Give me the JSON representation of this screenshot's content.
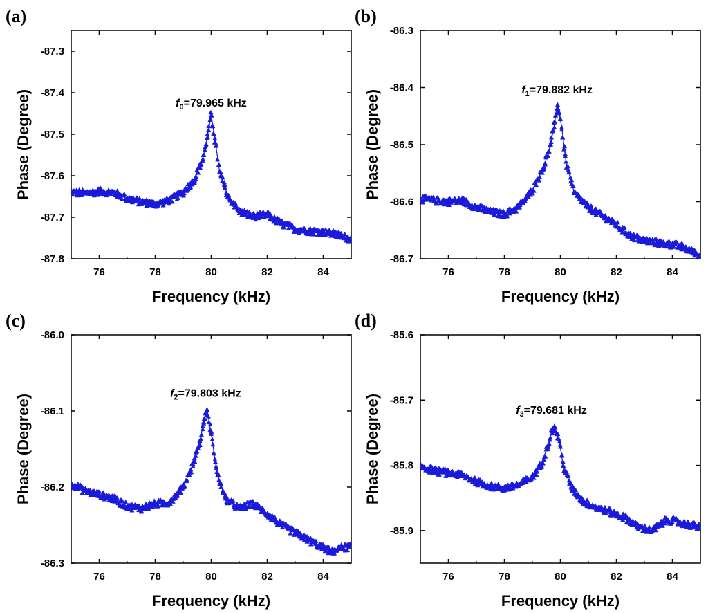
{
  "colors": {
    "series": "#1a1adb",
    "axis": "#000000"
  },
  "chart_data": [
    {
      "type": "scatter",
      "panel_label": "(a)",
      "xlabel": "Frequency (kHz)",
      "ylabel": "Phase (Degree)",
      "xlim": [
        75,
        85
      ],
      "ylim": [
        -87.8,
        -87.25
      ],
      "xticks": [
        76,
        78,
        80,
        82,
        84
      ],
      "xtick_labels": [
        "76",
        "78",
        "80",
        "82",
        "84"
      ],
      "yticks": [
        -87.3,
        -87.4,
        -87.5,
        -87.6,
        -87.7,
        -87.8
      ],
      "ytick_labels": [
        "-87.3",
        "-87.4",
        "-87.5",
        "-87.6",
        "-87.7",
        "-87.8"
      ],
      "annotation": {
        "symbol": "f",
        "sub": "0",
        "text": "=79.965 kHz",
        "x": 80.0,
        "y": -87.44
      },
      "series": [
        {
          "name": "phase",
          "marker": "triangle",
          "x": [
            75.0,
            75.5,
            76.0,
            76.5,
            77.0,
            77.5,
            78.0,
            78.5,
            79.0,
            79.4,
            79.7,
            79.85,
            80.0,
            80.15,
            80.3,
            80.6,
            81.0,
            81.5,
            82.0,
            82.5,
            83.0,
            83.5,
            84.0,
            84.5,
            85.0
          ],
          "y": [
            -87.64,
            -87.642,
            -87.638,
            -87.64,
            -87.655,
            -87.663,
            -87.668,
            -87.66,
            -87.64,
            -87.61,
            -87.56,
            -87.51,
            -87.455,
            -87.52,
            -87.59,
            -87.65,
            -87.685,
            -87.698,
            -87.695,
            -87.715,
            -87.728,
            -87.733,
            -87.735,
            -87.742,
            -87.752
          ]
        }
      ]
    },
    {
      "type": "scatter",
      "panel_label": "(b)",
      "xlabel": "Frequency (kHz)",
      "ylabel": "Phase (Degree)",
      "xlim": [
        75,
        85
      ],
      "ylim": [
        -86.7,
        -86.3
      ],
      "xticks": [
        76,
        78,
        80,
        82,
        84
      ],
      "xtick_labels": [
        "76",
        "78",
        "80",
        "82",
        "84"
      ],
      "yticks": [
        -86.3,
        -86.4,
        -86.5,
        -86.6,
        -86.7
      ],
      "ytick_labels": [
        "-86.3",
        "-86.4",
        "-86.5",
        "-86.6",
        "-86.7"
      ],
      "annotation": {
        "symbol": "f",
        "sub": "1",
        "text": "=79.882 kHz",
        "x": 79.88,
        "y": -86.415
      },
      "series": [
        {
          "name": "phase",
          "marker": "triangle",
          "x": [
            75.0,
            75.5,
            76.0,
            76.5,
            77.0,
            77.5,
            78.0,
            78.5,
            79.0,
            79.4,
            79.65,
            79.8,
            79.9,
            80.05,
            80.2,
            80.5,
            81.0,
            81.5,
            82.0,
            82.5,
            83.0,
            83.5,
            84.0,
            84.5,
            85.0
          ],
          "y": [
            -86.595,
            -86.598,
            -86.6,
            -86.598,
            -86.61,
            -86.618,
            -86.622,
            -86.61,
            -86.58,
            -86.54,
            -86.5,
            -86.46,
            -86.43,
            -86.47,
            -86.53,
            -86.585,
            -86.61,
            -86.625,
            -86.64,
            -86.66,
            -86.668,
            -86.672,
            -86.675,
            -86.682,
            -86.695
          ]
        }
      ]
    },
    {
      "type": "scatter",
      "panel_label": "(c)",
      "xlabel": "Frequency (kHz)",
      "ylabel": "Phase (Degree)",
      "xlim": [
        75,
        85
      ],
      "ylim": [
        -86.3,
        -86.0
      ],
      "xticks": [
        76,
        78,
        80,
        82,
        84
      ],
      "xtick_labels": [
        "76",
        "78",
        "80",
        "82",
        "84"
      ],
      "yticks": [
        -86.0,
        -86.1,
        -86.2,
        -86.3
      ],
      "ytick_labels": [
        "-86.0",
        "-86.1",
        "-86.2",
        "-86.3"
      ],
      "annotation": {
        "symbol": "f",
        "sub": "2",
        "text": "=79.803 kHz",
        "x": 79.8,
        "y": -86.085
      },
      "series": [
        {
          "name": "phase",
          "marker": "triangle",
          "x": [
            75.0,
            75.5,
            76.0,
            76.5,
            77.0,
            77.5,
            78.0,
            78.5,
            79.0,
            79.35,
            79.6,
            79.75,
            79.85,
            80.0,
            80.2,
            80.5,
            81.0,
            81.5,
            82.0,
            82.5,
            83.0,
            83.5,
            84.0,
            84.3,
            84.6,
            85.0
          ],
          "y": [
            -86.195,
            -86.205,
            -86.21,
            -86.215,
            -86.225,
            -86.228,
            -86.222,
            -86.22,
            -86.2,
            -86.17,
            -86.14,
            -86.11,
            -86.098,
            -86.13,
            -86.18,
            -86.215,
            -86.228,
            -86.222,
            -86.235,
            -86.25,
            -86.26,
            -86.27,
            -86.28,
            -86.285,
            -86.28,
            -86.278
          ]
        }
      ]
    },
    {
      "type": "scatter",
      "panel_label": "(d)",
      "xlabel": "Frequency (kHz)",
      "ylabel": "Phase (Degree)",
      "xlim": [
        75,
        85
      ],
      "ylim": [
        -85.95,
        -85.6
      ],
      "xticks": [
        76,
        78,
        80,
        82,
        84
      ],
      "xtick_labels": [
        "76",
        "78",
        "80",
        "82",
        "84"
      ],
      "yticks": [
        -85.6,
        -85.7,
        -85.8,
        -85.9
      ],
      "ytick_labels": [
        "-85.6",
        "-85.7",
        "-85.8",
        "-85.9"
      ],
      "annotation": {
        "symbol": "f",
        "sub": "3",
        "text": "=79.681 kHz",
        "x": 79.68,
        "y": -85.725
      },
      "series": [
        {
          "name": "phase",
          "marker": "triangle",
          "x": [
            75.0,
            75.5,
            76.0,
            76.5,
            77.0,
            77.5,
            78.0,
            78.5,
            79.0,
            79.3,
            79.55,
            79.7,
            79.8,
            79.95,
            80.1,
            80.4,
            80.8,
            81.3,
            81.8,
            82.3,
            82.8,
            83.3,
            83.8,
            84.3,
            85.0
          ],
          "y": [
            -85.802,
            -85.808,
            -85.812,
            -85.815,
            -85.825,
            -85.832,
            -85.835,
            -85.83,
            -85.818,
            -85.8,
            -85.77,
            -85.748,
            -85.742,
            -85.76,
            -85.8,
            -85.835,
            -85.855,
            -85.865,
            -85.872,
            -85.88,
            -85.895,
            -85.9,
            -85.883,
            -85.888,
            -85.895
          ]
        }
      ]
    }
  ]
}
